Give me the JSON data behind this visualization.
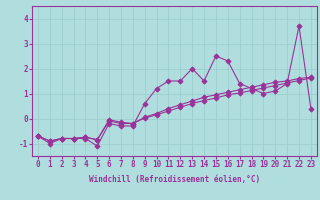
{
  "xlabel": "Windchill (Refroidissement éolien,°C)",
  "background_color": "#b0dede",
  "line_color": "#993399",
  "x": [
    0,
    1,
    2,
    3,
    4,
    5,
    6,
    7,
    8,
    9,
    10,
    11,
    12,
    13,
    14,
    15,
    16,
    17,
    18,
    19,
    20,
    21,
    22,
    23
  ],
  "series1": [
    -0.7,
    -1.0,
    -0.8,
    -0.8,
    -0.8,
    -1.1,
    -0.2,
    -0.3,
    -0.3,
    0.6,
    1.2,
    1.5,
    1.5,
    2.0,
    1.5,
    2.5,
    2.3,
    1.4,
    1.2,
    1.0,
    1.1,
    1.4,
    3.7,
    0.4
  ],
  "series2": [
    -0.7,
    -0.9,
    -0.8,
    -0.8,
    -0.75,
    -0.85,
    -0.1,
    -0.2,
    -0.2,
    0.05,
    0.2,
    0.4,
    0.55,
    0.7,
    0.85,
    0.95,
    1.05,
    1.15,
    1.25,
    1.35,
    1.45,
    1.5,
    1.6,
    1.65
  ],
  "series3": [
    -0.7,
    -0.9,
    -0.8,
    -0.8,
    -0.75,
    -0.85,
    -0.05,
    -0.15,
    -0.2,
    0.02,
    0.15,
    0.3,
    0.45,
    0.6,
    0.72,
    0.82,
    0.95,
    1.02,
    1.12,
    1.22,
    1.32,
    1.42,
    1.52,
    1.62
  ],
  "ylim": [
    -1.5,
    4.5
  ],
  "xlim": [
    -0.5,
    23.5
  ],
  "yticks": [
    -1,
    0,
    1,
    2,
    3,
    4
  ],
  "xticks": [
    0,
    1,
    2,
    3,
    4,
    5,
    6,
    7,
    8,
    9,
    10,
    11,
    12,
    13,
    14,
    15,
    16,
    17,
    18,
    19,
    20,
    21,
    22,
    23
  ],
  "grid_color": "#99cccc",
  "spine_color": "#993399",
  "tick_label_fontsize": 5.5,
  "xlabel_fontsize": 5.5
}
